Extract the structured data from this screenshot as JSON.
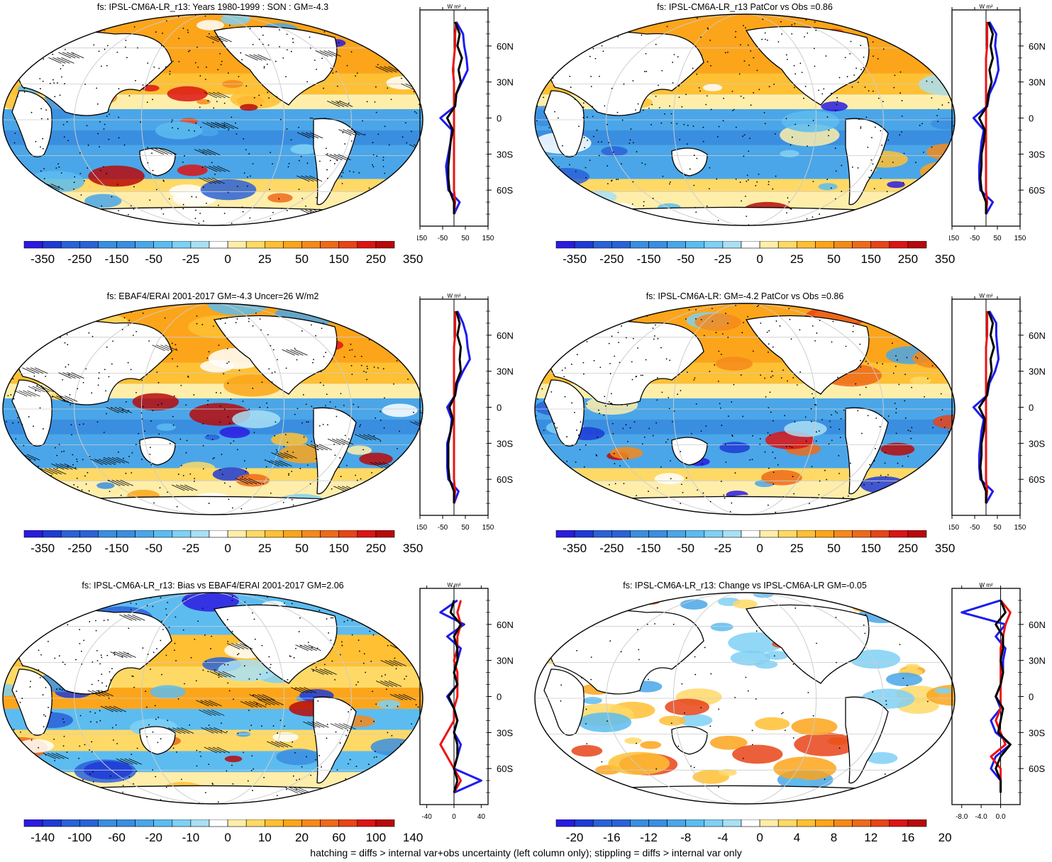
{
  "footer": "hatching = diffs > internal var+obs uncertainty (left column only); stippling = diffs > internal var only",
  "colors": {
    "scale": [
      "#2b1be0",
      "#1f3bd6",
      "#2a62d8",
      "#3a8ee0",
      "#4aa6e8",
      "#5cbcf0",
      "#7fd0f4",
      "#a9dff4",
      "#ffffff",
      "#ffffff",
      "#ffeeaa",
      "#ffd966",
      "#ffc033",
      "#fca51a",
      "#f5891a",
      "#ee6a1a",
      "#e84418",
      "#dc1414",
      "#b70a0a"
    ],
    "land": "#ffffff",
    "zonal_black": "#000000",
    "zonal_blue": "#1c1cf0",
    "zonal_red": "#ee1111"
  },
  "zonal_axis": {
    "unit": "W m²",
    "lat_ticks": [
      "60N",
      "30N",
      "0",
      "30S",
      "60S"
    ]
  },
  "chart_data": [
    {
      "type": "heatmap",
      "title": "fs: IPSL-CM6A-LR_r13: Years 1980-1999 : SON : GM=-4.3",
      "colorbar_labels": [
        "-350",
        "-250",
        "-150",
        "-50",
        "-25",
        "0",
        "25",
        "50",
        "150",
        "250",
        "350"
      ],
      "zonal_xticks": [
        "-150",
        "-50",
        "50",
        "150"
      ],
      "zonal_xlim": [
        -150,
        150
      ],
      "lat": [
        80,
        70,
        60,
        50,
        40,
        30,
        20,
        10,
        0,
        -10,
        -20,
        -30,
        -40,
        -50,
        -60,
        -70,
        -80
      ],
      "series": [
        {
          "color": "black",
          "values": [
            5,
            25,
            15,
            35,
            20,
            30,
            10,
            5,
            -30,
            -5,
            -15,
            -20,
            -25,
            -25,
            -20,
            0,
            0
          ]
        },
        {
          "color": "blue",
          "values": [
            10,
            40,
            45,
            55,
            60,
            35,
            10,
            5,
            -60,
            -10,
            -15,
            -25,
            -35,
            -30,
            -25,
            25,
            0
          ]
        },
        {
          "color": "red",
          "values": [
            10,
            5,
            5,
            0,
            -5,
            0,
            0,
            0,
            0,
            0,
            0,
            0,
            0,
            0,
            0,
            5,
            0
          ]
        }
      ],
      "hatching": true,
      "stippling": true
    },
    {
      "type": "heatmap",
      "title": "fs: IPSL-CM6A-LR_r13 PatCor vs Obs =0.86",
      "colorbar_labels": [
        "-350",
        "-250",
        "-150",
        "-50",
        "-25",
        "0",
        "25",
        "50",
        "150",
        "250",
        "350"
      ],
      "zonal_xticks": [
        "-150",
        "-50",
        "50",
        "150"
      ],
      "zonal_xlim": [
        -150,
        150
      ],
      "lat": [
        80,
        70,
        60,
        50,
        40,
        30,
        20,
        10,
        0,
        -10,
        -20,
        -30,
        -40,
        -50,
        -60,
        -70,
        -80
      ],
      "series": [
        {
          "color": "black",
          "values": [
            10,
            30,
            20,
            30,
            15,
            25,
            10,
            5,
            -30,
            -5,
            -10,
            -20,
            -20,
            -25,
            -20,
            0,
            0
          ]
        },
        {
          "color": "blue",
          "values": [
            15,
            45,
            40,
            50,
            55,
            40,
            15,
            5,
            -55,
            -10,
            -20,
            -25,
            -30,
            -30,
            -25,
            30,
            0
          ]
        },
        {
          "color": "red",
          "values": [
            5,
            5,
            5,
            0,
            0,
            0,
            0,
            0,
            0,
            0,
            0,
            0,
            0,
            0,
            0,
            5,
            0
          ]
        }
      ],
      "hatching": false,
      "stippling": true
    },
    {
      "type": "heatmap",
      "title": "fs: EBAF4/ERAI 2001-2017 GM=-4.3 Uncer=26 W/m2",
      "colorbar_labels": [
        "-350",
        "-250",
        "-150",
        "-50",
        "-25",
        "0",
        "25",
        "50",
        "150",
        "250",
        "350"
      ],
      "zonal_xticks": [
        "-150",
        "-50",
        "50",
        "150"
      ],
      "zonal_xlim": [
        -150,
        150
      ],
      "lat": [
        80,
        70,
        60,
        50,
        40,
        30,
        20,
        10,
        0,
        -10,
        -20,
        -30,
        -40,
        -50,
        -60,
        -70,
        -80
      ],
      "series": [
        {
          "color": "black",
          "values": [
            10,
            25,
            15,
            30,
            25,
            30,
            10,
            5,
            -20,
            -5,
            -15,
            -25,
            -25,
            -25,
            -20,
            0,
            0
          ]
        },
        {
          "color": "blue",
          "values": [
            15,
            40,
            55,
            60,
            70,
            40,
            15,
            5,
            -30,
            -10,
            -15,
            -30,
            -30,
            -30,
            -25,
            20,
            0
          ]
        },
        {
          "color": "red",
          "values": [
            5,
            5,
            5,
            0,
            0,
            0,
            0,
            0,
            0,
            0,
            0,
            0,
            0,
            0,
            0,
            5,
            0
          ]
        }
      ],
      "hatching": true,
      "stippling": true
    },
    {
      "type": "heatmap",
      "title": "fs: IPSL-CM6A-LR: GM=-4.2 PatCor vs Obs =0.86",
      "colorbar_labels": [
        "-350",
        "-250",
        "-150",
        "-50",
        "-25",
        "0",
        "25",
        "50",
        "150",
        "250",
        "350"
      ],
      "zonal_xticks": [
        "-150",
        "-50",
        "50",
        "150"
      ],
      "zonal_xlim": [
        -150,
        150
      ],
      "lat": [
        80,
        70,
        60,
        50,
        40,
        30,
        20,
        10,
        0,
        -10,
        -20,
        -30,
        -40,
        -50,
        -60,
        -70,
        -80
      ],
      "series": [
        {
          "color": "black",
          "values": [
            10,
            30,
            20,
            35,
            20,
            25,
            10,
            5,
            -30,
            -5,
            -10,
            -20,
            -20,
            -25,
            -20,
            0,
            0
          ]
        },
        {
          "color": "blue",
          "values": [
            15,
            45,
            45,
            50,
            55,
            40,
            15,
            5,
            -55,
            -10,
            -20,
            -25,
            -30,
            -30,
            -25,
            30,
            0
          ]
        },
        {
          "color": "red",
          "values": [
            5,
            5,
            5,
            0,
            0,
            0,
            0,
            0,
            0,
            0,
            0,
            0,
            0,
            0,
            0,
            5,
            0
          ]
        }
      ],
      "hatching": false,
      "stippling": true
    },
    {
      "type": "heatmap",
      "title": "fs: IPSL-CM6A-LR_r13: Bias vs EBAF4/ERAI 2001-2017  GM=2.06",
      "colorbar_labels": [
        "-140",
        "-100",
        "-60",
        "-20",
        "-10",
        "0",
        "10",
        "20",
        "60",
        "100",
        "140"
      ],
      "zonal_xticks": [
        "-40",
        "0",
        "40"
      ],
      "zonal_xlim": [
        -50,
        50
      ],
      "lat": [
        80,
        70,
        60,
        50,
        40,
        30,
        20,
        10,
        0,
        -10,
        -20,
        -30,
        -40,
        -50,
        -60,
        -70,
        -80
      ],
      "series": [
        {
          "color": "black",
          "values": [
            0,
            -5,
            10,
            0,
            5,
            5,
            0,
            5,
            -8,
            0,
            5,
            0,
            5,
            5,
            0,
            5,
            0
          ]
        },
        {
          "color": "blue",
          "values": [
            5,
            -20,
            15,
            -10,
            10,
            5,
            0,
            5,
            -10,
            0,
            5,
            0,
            10,
            5,
            0,
            40,
            0
          ]
        },
        {
          "color": "red",
          "values": [
            10,
            5,
            10,
            5,
            5,
            0,
            5,
            5,
            5,
            0,
            0,
            -10,
            -20,
            -10,
            0,
            10,
            0
          ]
        }
      ],
      "hatching": true,
      "stippling": true
    },
    {
      "type": "heatmap",
      "title": "fs: IPSL-CM6A-LR_r13: Change vs IPSL-CM6A-LR GM=-0.05",
      "colorbar_labels": [
        "-20",
        "-16",
        "-12",
        "-8",
        "-4",
        "0",
        "4",
        "8",
        "12",
        "16",
        "20"
      ],
      "zonal_xticks": [
        "-8.0",
        "-4.0",
        "0.0"
      ],
      "zonal_xlim": [
        -10,
        4
      ],
      "lat": [
        80,
        70,
        60,
        50,
        40,
        30,
        20,
        10,
        0,
        -10,
        -20,
        -30,
        -40,
        -50,
        -60,
        -70,
        -80
      ],
      "series": [
        {
          "color": "black",
          "values": [
            0,
            1,
            -1,
            0.5,
            0.5,
            0,
            0.5,
            0,
            -1,
            0.5,
            0,
            -0.5,
            2,
            0,
            -1,
            0,
            0
          ]
        },
        {
          "color": "blue",
          "values": [
            0,
            -8,
            1,
            -1,
            1,
            0.5,
            0.5,
            0,
            -1,
            0,
            -2,
            -1,
            2,
            -1,
            -2,
            0,
            0
          ]
        },
        {
          "color": "red",
          "values": [
            0,
            2,
            1,
            0.5,
            0,
            0,
            0,
            0,
            0,
            0,
            -1,
            0,
            1,
            -2,
            0,
            0,
            0
          ]
        }
      ],
      "hatching": false,
      "stippling": true
    }
  ]
}
